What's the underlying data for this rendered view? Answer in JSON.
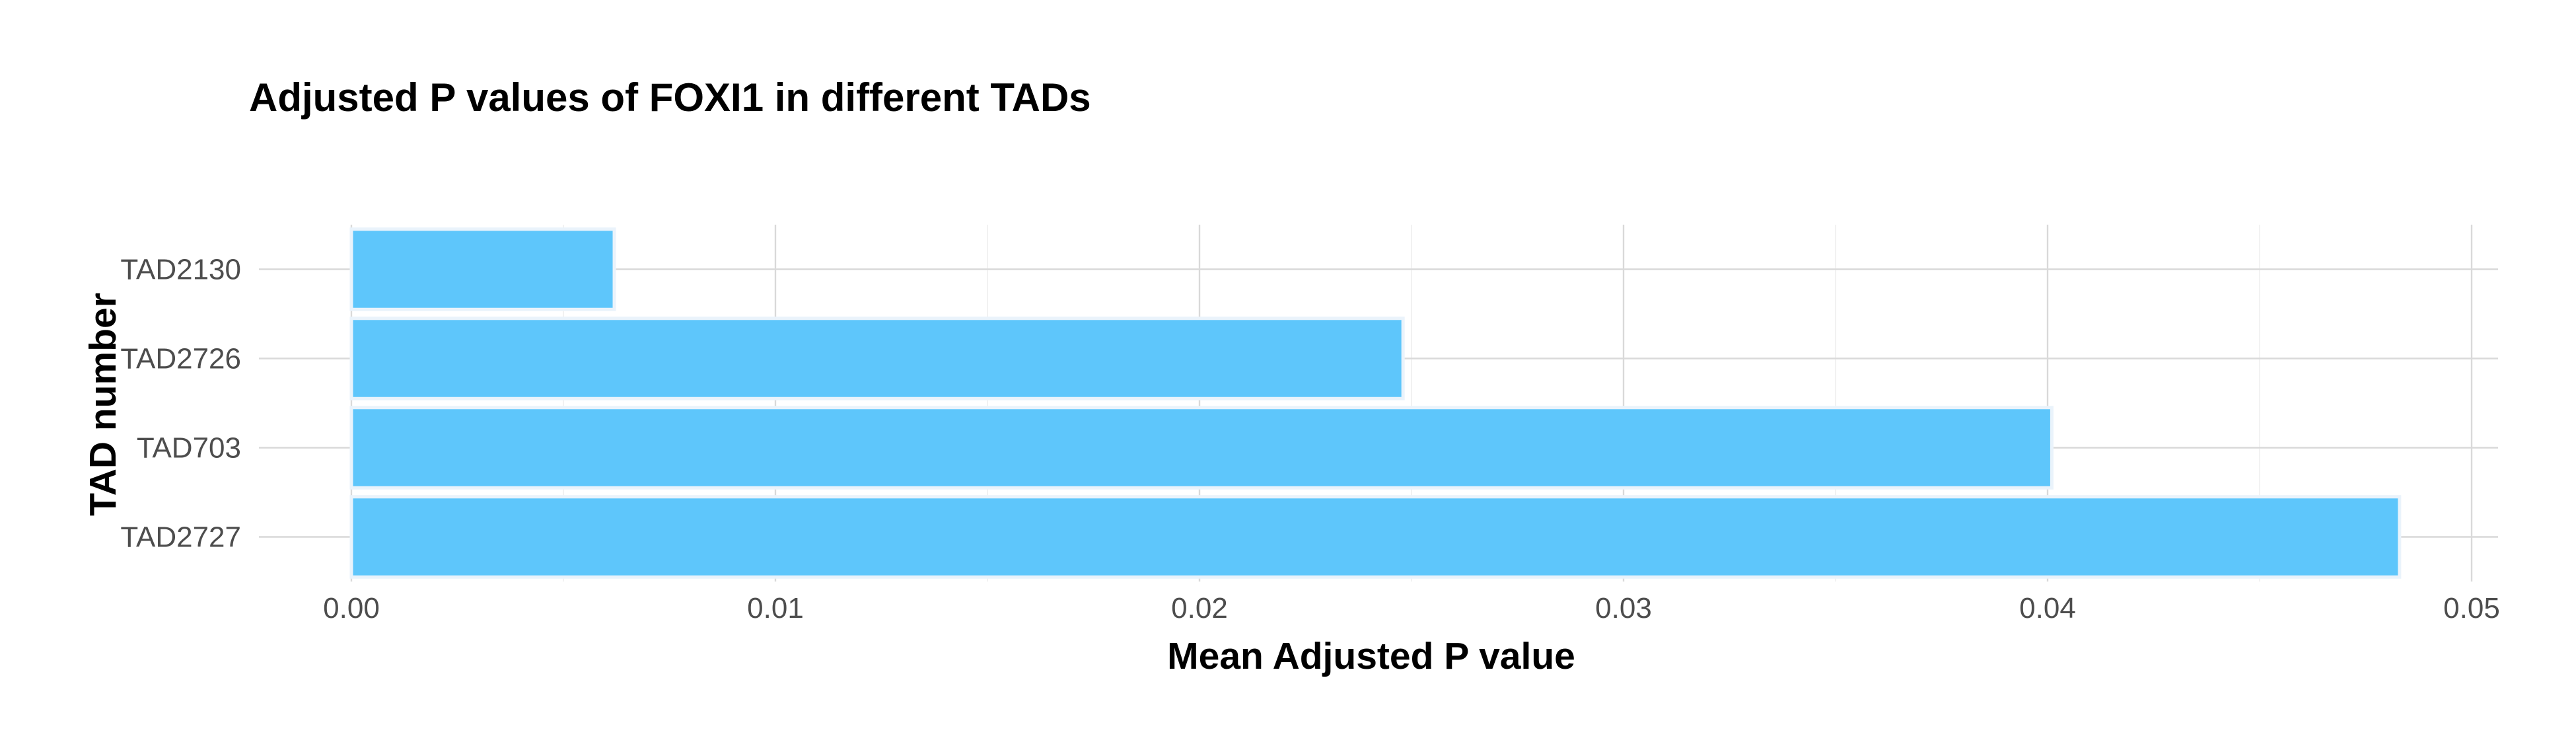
{
  "chart_data": {
    "type": "bar",
    "orientation": "horizontal",
    "title": "Adjusted P values of FOXI1 in different TADs",
    "xlabel": "Mean Adjusted P value",
    "ylabel": "TAD number",
    "categories": [
      "TAD2130",
      "TAD2726",
      "TAD703",
      "TAD2727"
    ],
    "values": [
      0.0062,
      0.0248,
      0.0401,
      0.0483
    ],
    "xlim": [
      0,
      0.05
    ],
    "x_ticks": [
      {
        "value": 0.0,
        "label": "0.00"
      },
      {
        "value": 0.01,
        "label": "0.01"
      },
      {
        "value": 0.02,
        "label": "0.02"
      },
      {
        "value": 0.03,
        "label": "0.03"
      },
      {
        "value": 0.04,
        "label": "0.04"
      },
      {
        "value": 0.05,
        "label": "0.05"
      }
    ],
    "grid": true,
    "legend": "none",
    "bar_color": "#5ec6fb"
  }
}
